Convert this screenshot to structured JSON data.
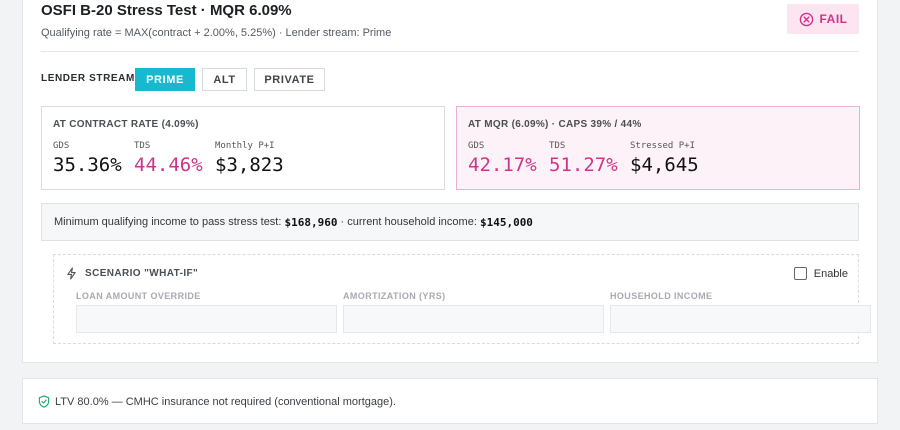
{
  "header": {
    "title": "OSFI B-20 Stress Test · MQR 6.09%",
    "subtitle": "Qualifying rate = MAX(contract + 2.00%, 5.25%) · Lender stream: Prime",
    "status_label": "FAIL",
    "status_icon": "x-circle-icon"
  },
  "lender_stream": {
    "label": "LENDER STREAM",
    "options": [
      "PRIME",
      "ALT",
      "PRIVATE"
    ],
    "selected": "PRIME"
  },
  "contract_panel": {
    "heading": "AT CONTRACT RATE (4.09%)",
    "metrics": [
      {
        "label": "GDS",
        "value": "35.36%",
        "flag": "normal"
      },
      {
        "label": "TDS",
        "value": "44.46%",
        "flag": "over"
      },
      {
        "label": "Monthly P+I",
        "value": "$3,823",
        "flag": "normal"
      }
    ]
  },
  "mqr_panel": {
    "heading": "AT MQR (6.09%) · CAPS 39% / 44%",
    "metrics": [
      {
        "label": "GDS",
        "value": "42.17%",
        "flag": "over"
      },
      {
        "label": "TDS",
        "value": "51.27%",
        "flag": "over"
      },
      {
        "label": "Stressed P+I",
        "value": "$4,645",
        "flag": "normal"
      }
    ]
  },
  "income": {
    "prefix": "Minimum qualifying income to pass stress test:",
    "min_income": "$168,960",
    "middle": "· current household income:",
    "current_income": "$145,000"
  },
  "whatif": {
    "title": "SCENARIO \"WHAT-IF\"",
    "icon": "lightning-icon",
    "enable_label": "Enable",
    "enabled": false,
    "fields": [
      {
        "label": "LOAN AMOUNT OVERRIDE",
        "value": ""
      },
      {
        "label": "AMORTIZATION (YRS)",
        "value": ""
      },
      {
        "label": "HOUSEHOLD INCOME",
        "value": ""
      }
    ]
  },
  "ltv_note": {
    "icon": "shield-check-icon",
    "text": "LTV 80.0% — CMHC insurance not required (conventional mortgage)."
  },
  "colors": {
    "accent": "#17b9cf",
    "fail": "#d0348a",
    "fail_bg": "#fce4f0",
    "ok_icon": "#1aa36f"
  }
}
